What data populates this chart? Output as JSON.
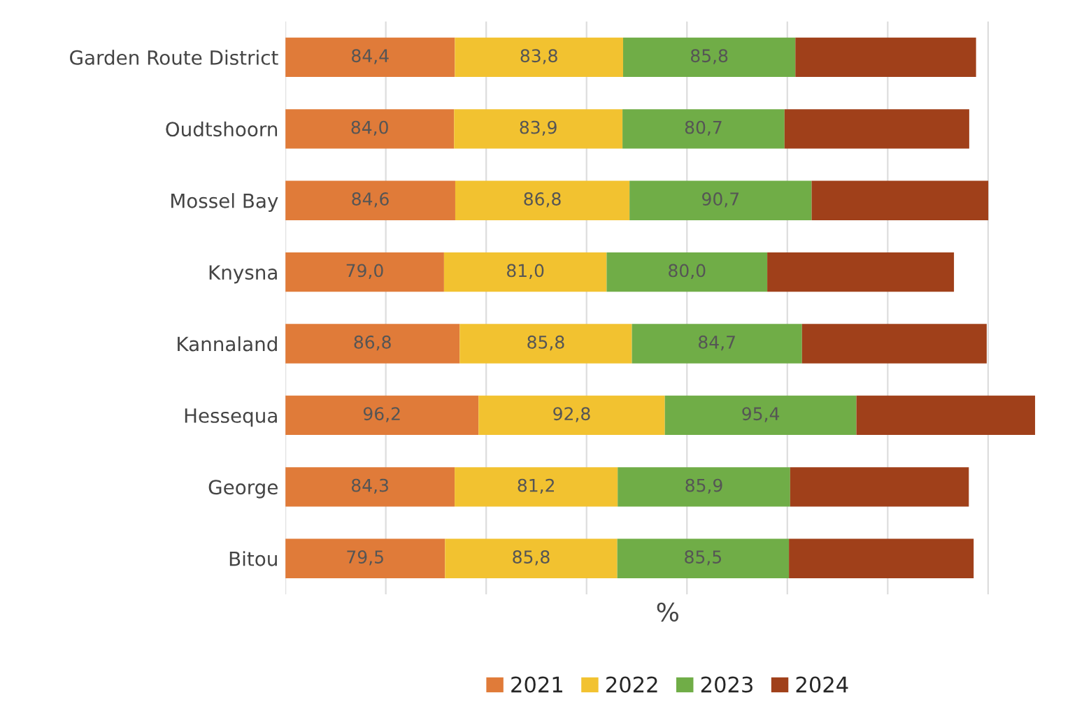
{
  "chart_data": {
    "type": "bar",
    "orientation": "horizontal",
    "stacked": true,
    "xlabel": "%",
    "legend": "bottom",
    "grid": "x",
    "tick_labels": "y",
    "categories": [
      "Garden Route District",
      "Oudtshoorn",
      "Mossel Bay",
      "Knysna",
      "Kannaland",
      "Hessequa",
      "George",
      "Bitou"
    ],
    "series": [
      {
        "name": "2021",
        "color": "#e07b39",
        "values": [
          84.4,
          84.0,
          84.6,
          79.0,
          86.8,
          96.2,
          84.3,
          79.5
        ],
        "value_labels": [
          "84,4",
          "84,0",
          "84,6",
          "79,0",
          "86,8",
          "96,2",
          "84,3",
          "79,5"
        ]
      },
      {
        "name": "2022",
        "color": "#f2c230",
        "values": [
          83.8,
          83.9,
          86.8,
          81.0,
          85.8,
          92.8,
          81.2,
          85.8
        ],
        "value_labels": [
          "83,8",
          "83,9",
          "86,8",
          "81,0",
          "85,8",
          "92,8",
          "81,2",
          "85,8"
        ]
      },
      {
        "name": "2023",
        "color": "#70ad47",
        "values": [
          85.8,
          80.7,
          90.7,
          80.0,
          84.7,
          95.4,
          85.9,
          85.5
        ],
        "value_labels": [
          "85,8",
          "80,7",
          "90,7",
          "80,0",
          "84,7",
          "95,4",
          "85,9",
          "85,5"
        ]
      },
      {
        "name": "2024",
        "color": "#a0401a",
        "values": [
          90,
          92,
          88,
          93,
          92,
          89,
          89,
          92
        ],
        "value_labels": [
          null,
          null,
          null,
          null,
          null,
          null,
          null,
          null
        ]
      }
    ]
  }
}
